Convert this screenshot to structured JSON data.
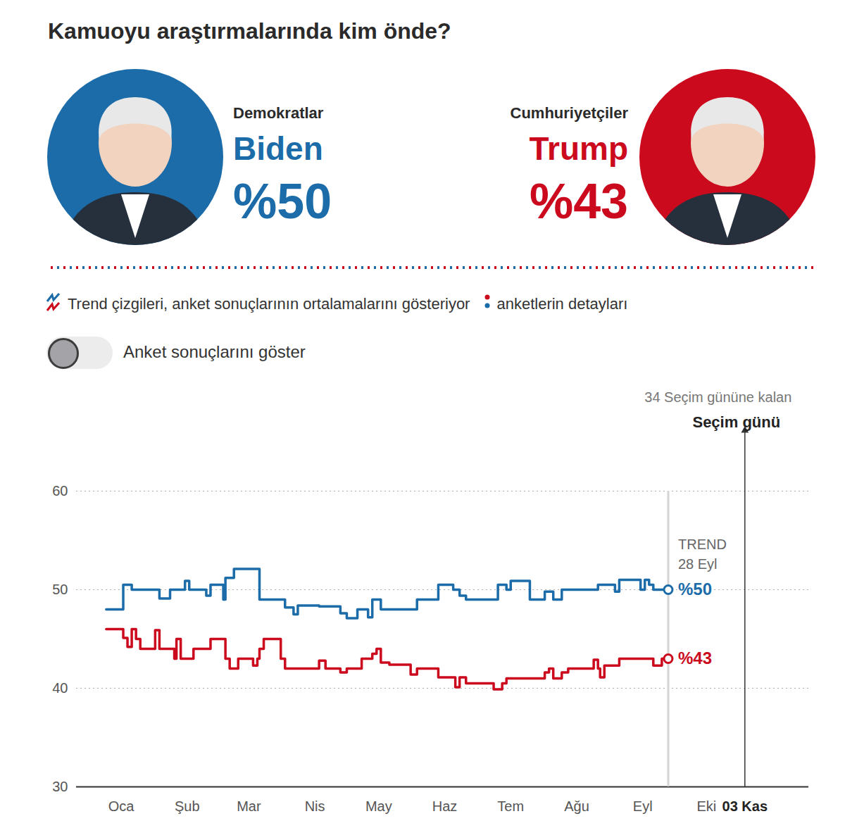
{
  "header": {
    "candidates": [
      {
        "party": "Demokratlar",
        "name": "Biden",
        "share": "%50",
        "color": "#1b6ca8"
      },
      {
        "party": "Cumhuriyetçiler",
        "name": "Trump",
        "share": "%43",
        "color": "#cc0a1e"
      }
    ],
    "legend_trend": "Trend çizgileri, anket sonuçlarının ortalamalarını gösteriyor",
    "legend_polls": "anketlerin detayları",
    "toggle": "Anket sonuçlarını göster"
  },
  "chart_data": {
    "type": "line",
    "title": "Kamuoyu araştırmalarında kim önde?",
    "x": [
      8,
      14,
      16,
      18,
      20,
      22,
      24,
      26,
      29,
      31,
      33,
      36,
      38,
      40,
      41,
      43,
      45,
      47,
      49,
      51,
      54,
      55,
      57,
      60,
      63,
      64,
      66,
      68,
      70,
      73,
      75,
      77,
      79,
      80,
      82,
      84,
      88,
      90,
      92,
      94,
      96,
      98,
      101,
      104,
      108,
      111,
      114,
      118,
      121,
      124,
      126,
      128,
      131,
      133,
      135,
      137,
      141,
      144,
      147,
      151,
      154,
      157,
      161,
      164,
      167,
      171,
      172,
      174,
      177,
      181,
      184,
      187,
      190,
      192,
      194,
      196,
      198,
      201,
      205,
      207,
      210,
      214,
      216,
      218,
      220,
      222,
      225,
      228,
      232,
      235,
      237,
      239,
      240,
      242,
      244,
      247,
      249,
      252,
      255,
      257,
      259,
      261,
      263,
      265,
      269,
      272
    ],
    "series": [
      {
        "name": "Biden",
        "color": "#1b6ca8",
        "end_label": "%50",
        "values": [
          48,
          48,
          50.5,
          50.5,
          50,
          50,
          50,
          50,
          50,
          50,
          49.1,
          49.1,
          50,
          50,
          50,
          50,
          50.9,
          50,
          50,
          50,
          50,
          49.4,
          50.5,
          50.5,
          49,
          51.2,
          51.2,
          52.1,
          52.1,
          52.1,
          52.1,
          52.1,
          52.1,
          49,
          49,
          49,
          49,
          49,
          48.2,
          48.2,
          47.5,
          48.4,
          48.4,
          48.4,
          48.3,
          48.3,
          48.3,
          47.6,
          47.1,
          47.1,
          48,
          48,
          47.2,
          49,
          49,
          48,
          48,
          48,
          48,
          48,
          49,
          49,
          49,
          50.5,
          50.5,
          50,
          50,
          49.4,
          49,
          49,
          49,
          49,
          49,
          50.5,
          50.5,
          50,
          50.9,
          50.9,
          50.9,
          49,
          49,
          49.8,
          49.8,
          49,
          49,
          50,
          50,
          50,
          50,
          50,
          50,
          50.5,
          50.5,
          50.5,
          50.5,
          49.8,
          51,
          51,
          51,
          51,
          50,
          51,
          50.5,
          50,
          50,
          50
        ]
      },
      {
        "name": "Trump",
        "color": "#cc0a1e",
        "end_label": "%43",
        "values": [
          46,
          46,
          45.1,
          44.2,
          46,
          45,
          44,
          44,
          44,
          45.9,
          44,
          44,
          44,
          43,
          45,
          43,
          43,
          43,
          44,
          44,
          44,
          44,
          45,
          45,
          45,
          43,
          42,
          42,
          43,
          43,
          43,
          42.3,
          43,
          44,
          45,
          45,
          45,
          43,
          42,
          42,
          42,
          42,
          42,
          42,
          42.8,
          42,
          42,
          41.6,
          42,
          42,
          42,
          43,
          43,
          43.5,
          44,
          42.6,
          42.4,
          42.4,
          42.4,
          41.4,
          42,
          42,
          42,
          41.1,
          41.1,
          41.1,
          40.1,
          41.1,
          40.5,
          40.5,
          40.5,
          40.5,
          39.9,
          39.9,
          40.5,
          41,
          41,
          41,
          41,
          41,
          41,
          41.6,
          42,
          41,
          41,
          41.6,
          42,
          42,
          42,
          42,
          42.9,
          42,
          41.1,
          42.3,
          42.3,
          42.3,
          43,
          43,
          43,
          43,
          43,
          43,
          43,
          42.3,
          43,
          43
        ]
      }
    ],
    "xlim": [
      -6,
      338
    ],
    "xticks": [
      {
        "value": 15,
        "label": "Oca"
      },
      {
        "value": 46,
        "label": "Şub"
      },
      {
        "value": 75,
        "label": "Mar"
      },
      {
        "value": 106,
        "label": "Nis"
      },
      {
        "value": 136,
        "label": "May"
      },
      {
        "value": 167,
        "label": "Haz"
      },
      {
        "value": 198,
        "label": "Tem"
      },
      {
        "value": 229,
        "label": "Ağu"
      },
      {
        "value": 260,
        "label": "Eyl"
      },
      {
        "value": 290,
        "label": "Eki"
      },
      {
        "value": 308,
        "label": "03 Kas"
      }
    ],
    "ylim": [
      30,
      60
    ],
    "yticks": [
      30,
      40,
      50,
      60
    ],
    "grid": true,
    "trend_marker": {
      "x": 272,
      "label": "TREND",
      "date": "28 Eyl"
    },
    "election_day": {
      "x": 308,
      "label": "Seçim günü",
      "countdown": "34 Seçim gününe kalan"
    }
  }
}
